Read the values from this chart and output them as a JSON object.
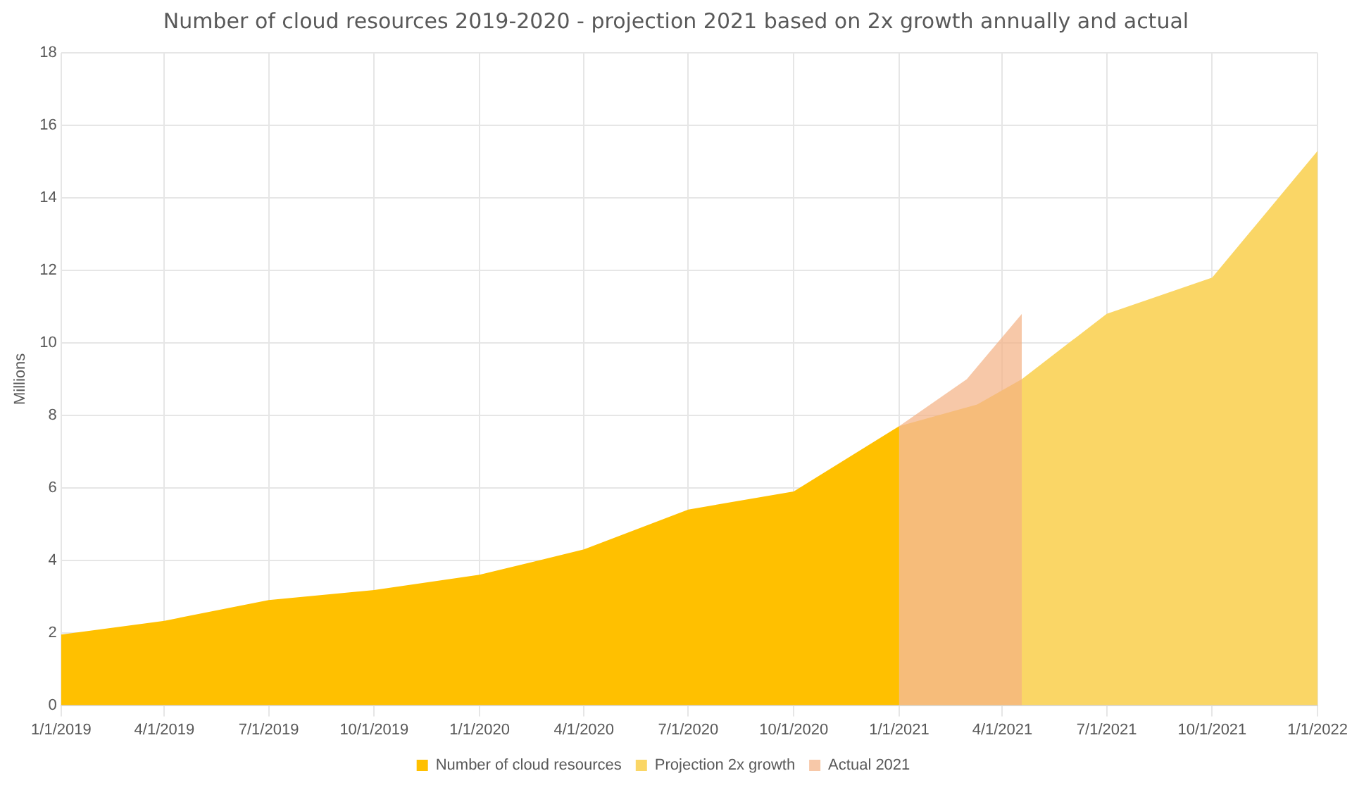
{
  "chart_data": {
    "type": "area",
    "title": "Number of  cloud resources 2019-2020 - projection 2021 based on 2x growth annually and actual",
    "ylabel": "Millions",
    "xlim": [
      "2019-01-01",
      "2022-01-01"
    ],
    "xticks": [
      {
        "value": "2019-01-01",
        "label": "1/1/2019"
      },
      {
        "value": "2019-04-01",
        "label": "4/1/2019"
      },
      {
        "value": "2019-07-01",
        "label": "7/1/2019"
      },
      {
        "value": "2019-10-01",
        "label": "10/1/2019"
      },
      {
        "value": "2020-01-01",
        "label": "1/1/2020"
      },
      {
        "value": "2020-04-01",
        "label": "4/1/2020"
      },
      {
        "value": "2020-07-01",
        "label": "7/1/2020"
      },
      {
        "value": "2020-10-01",
        "label": "10/1/2020"
      },
      {
        "value": "2021-01-01",
        "label": "1/1/2021"
      },
      {
        "value": "2021-04-01",
        "label": "4/1/2021"
      },
      {
        "value": "2021-07-01",
        "label": "7/1/2021"
      },
      {
        "value": "2021-10-01",
        "label": "10/1/2021"
      },
      {
        "value": "2022-01-01",
        "label": "1/1/2022"
      }
    ],
    "ylim": [
      0,
      18
    ],
    "yticks": [
      0,
      2,
      4,
      6,
      8,
      10,
      12,
      14,
      16,
      18
    ],
    "grid": true,
    "legend": "bottom",
    "series": [
      {
        "name": "Number of cloud resources",
        "color": "#ffc000",
        "x": [
          "2019-01-01",
          "2019-04-01",
          "2019-07-01",
          "2019-10-01",
          "2020-01-01",
          "2020-04-01",
          "2020-07-01",
          "2020-10-01",
          "2021-01-01"
        ],
        "values": [
          1.95,
          2.33,
          2.9,
          3.18,
          3.6,
          4.3,
          5.4,
          5.9,
          7.7
        ]
      },
      {
        "name": "Projection 2x growth",
        "color": "#fad666",
        "x": [
          "2021-01-01",
          "2021-03-10",
          "2021-04-18",
          "2021-07-01",
          "2021-10-01",
          "2022-01-01"
        ],
        "values": [
          7.7,
          8.3,
          9.0,
          10.8,
          11.8,
          15.3
        ]
      },
      {
        "name": "Actual 2021",
        "color": "#f4b183",
        "x": [
          "2021-01-01",
          "2021-03-01",
          "2021-04-18"
        ],
        "values": [
          7.7,
          9.0,
          10.8
        ]
      }
    ]
  }
}
